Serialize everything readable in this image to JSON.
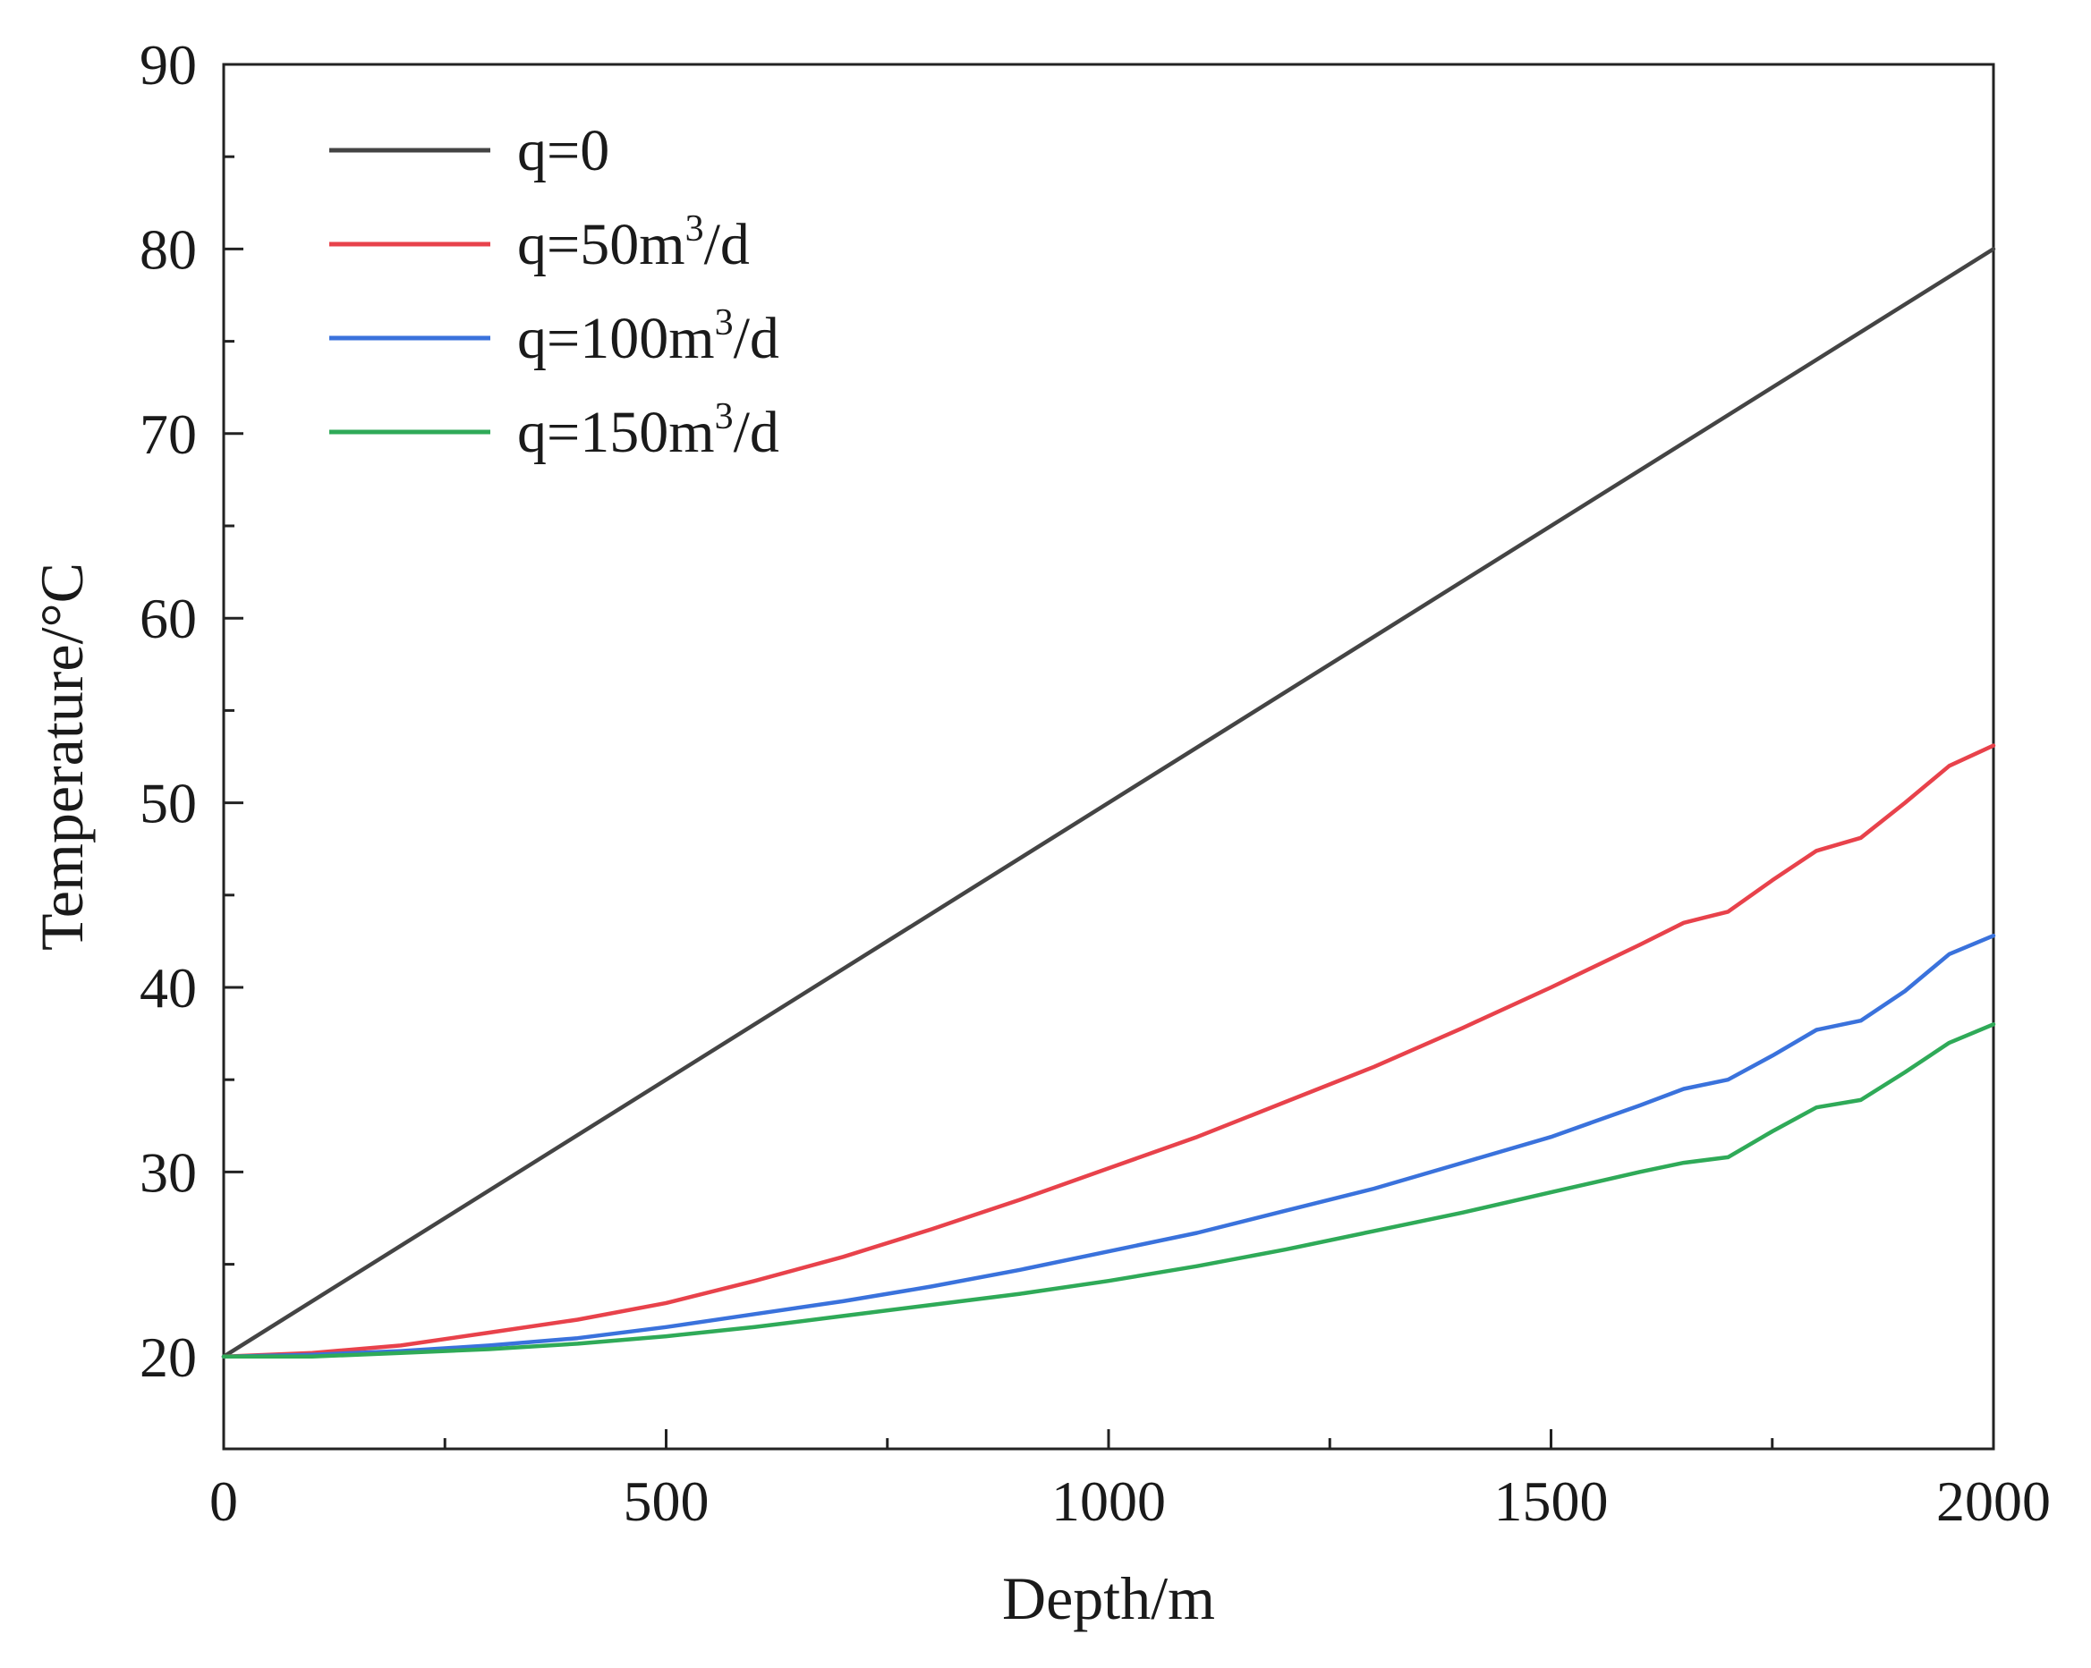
{
  "chart_data": {
    "type": "line",
    "xlabel": "Depth/m",
    "ylabel": "Temperature/°C",
    "xlim": [
      0,
      2000
    ],
    "ylim": [
      15,
      90
    ],
    "x_ticks": [
      0,
      500,
      1000,
      1500,
      2000
    ],
    "x_tick_labels": [
      "0",
      "500",
      "1000",
      "1500",
      "2000"
    ],
    "x_minor_ticks": [
      250,
      750,
      1250,
      1750
    ],
    "y_ticks": [
      20,
      30,
      40,
      50,
      60,
      70,
      80,
      90
    ],
    "y_tick_labels": [
      "20",
      "30",
      "40",
      "50",
      "60",
      "70",
      "80",
      "90"
    ],
    "y_minor_ticks": [
      25,
      35,
      45,
      55,
      65,
      75,
      85
    ],
    "grid": false,
    "legend_position": "top-left",
    "series": [
      {
        "name": "q=0",
        "name_base": "q=0",
        "name_sup": "",
        "name_tail": "",
        "color": "#444444",
        "x": [
          0,
          2000
        ],
        "y": [
          20,
          80
        ]
      },
      {
        "name": "q=50m3/d",
        "name_base": "q=50m",
        "name_sup": "3",
        "name_tail": "/d",
        "color": "#e8424b",
        "x": [
          0,
          100,
          200,
          300,
          400,
          500,
          600,
          700,
          800,
          900,
          1000,
          1100,
          1200,
          1300,
          1400,
          1500,
          1600,
          1650,
          1700,
          1750,
          1800,
          1850,
          1900,
          1950,
          2000
        ],
        "y": [
          20,
          20.2,
          20.6,
          21.3,
          22.0,
          22.9,
          24.1,
          25.4,
          26.9,
          28.5,
          30.2,
          31.9,
          33.8,
          35.7,
          37.8,
          40.0,
          42.3,
          43.5,
          44.1,
          45.8,
          47.4,
          48.1,
          50.0,
          52.0,
          53.1
        ]
      },
      {
        "name": "q=100m3/d",
        "name_base": "q=100m",
        "name_sup": "3",
        "name_tail": "/d",
        "color": "#3a72dc",
        "x": [
          0,
          100,
          200,
          300,
          400,
          500,
          600,
          700,
          800,
          900,
          1000,
          1100,
          1200,
          1300,
          1400,
          1500,
          1600,
          1650,
          1700,
          1750,
          1800,
          1850,
          1900,
          1950,
          2000
        ],
        "y": [
          20,
          20.1,
          20.3,
          20.6,
          21.0,
          21.6,
          22.3,
          23.0,
          23.8,
          24.7,
          25.7,
          26.7,
          27.9,
          29.1,
          30.5,
          31.9,
          33.6,
          34.5,
          35.0,
          36.3,
          37.7,
          38.2,
          39.8,
          41.8,
          42.8
        ]
      },
      {
        "name": "q=150m3/d",
        "name_base": "q=150m",
        "name_sup": "3",
        "name_tail": "/d",
        "color": "#2faa58",
        "x": [
          0,
          100,
          200,
          300,
          400,
          500,
          600,
          700,
          800,
          900,
          1000,
          1100,
          1200,
          1300,
          1400,
          1500,
          1600,
          1650,
          1700,
          1750,
          1800,
          1850,
          1900,
          1950,
          2000
        ],
        "y": [
          20,
          20.0,
          20.2,
          20.4,
          20.7,
          21.1,
          21.6,
          22.2,
          22.8,
          23.4,
          24.1,
          24.9,
          25.8,
          26.8,
          27.8,
          28.9,
          30.0,
          30.5,
          30.8,
          32.2,
          33.5,
          33.9,
          35.4,
          37.0,
          38.0
        ]
      }
    ]
  }
}
